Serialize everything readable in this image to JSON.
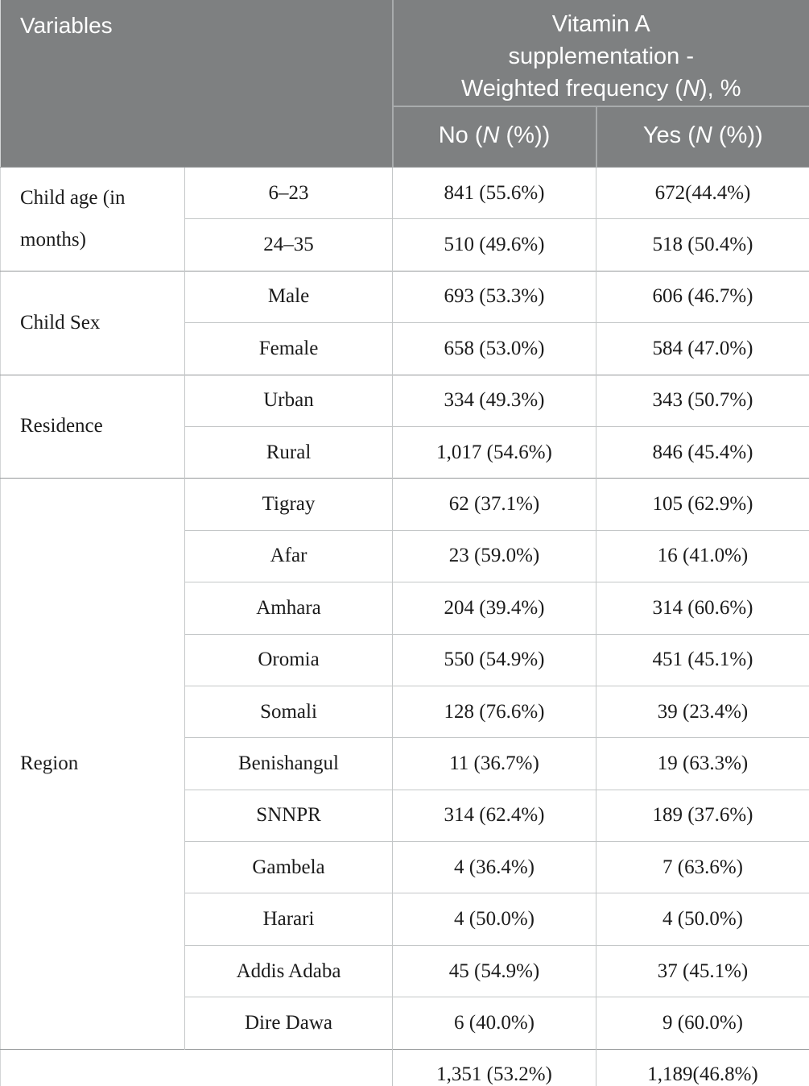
{
  "colors": {
    "header_bg": "#7e8081",
    "header_text": "#ffffff",
    "header_divider": "#a8abac",
    "border_light": "#c4c7c8",
    "border_dark": "#95989a",
    "text": "#1b1b1b"
  },
  "table": {
    "header": {
      "variables_label": "Variables",
      "group_title_html": "Vitamin A<br>supplementation -<br>Weighted frequency (<i>N</i>), %",
      "col_no_html": "No (<i>N</i> (%))",
      "col_yes_html": "Yes (<i>N</i> (%))"
    },
    "groups": [
      {
        "variable": "Child age (in months)",
        "rows": [
          {
            "category": "6–23",
            "no": "841 (55.6%)",
            "yes": "672(44.4%)"
          },
          {
            "category": "24–35",
            "no": "510 (49.6%)",
            "yes": "518 (50.4%)"
          }
        ]
      },
      {
        "variable": "Child Sex",
        "rows": [
          {
            "category": "Male",
            "no": "693 (53.3%)",
            "yes": "606 (46.7%)"
          },
          {
            "category": "Female",
            "no": "658 (53.0%)",
            "yes": "584 (47.0%)"
          }
        ]
      },
      {
        "variable": "Residence",
        "rows": [
          {
            "category": "Urban",
            "no": "334 (49.3%)",
            "yes": "343 (50.7%)"
          },
          {
            "category": "Rural",
            "no": "1,017 (54.6%)",
            "yes": "846 (45.4%)"
          }
        ]
      },
      {
        "variable": "Region",
        "rows": [
          {
            "category": "Tigray",
            "no": "62 (37.1%)",
            "yes": "105 (62.9%)"
          },
          {
            "category": "Afar",
            "no": "23 (59.0%)",
            "yes": "16 (41.0%)"
          },
          {
            "category": "Amhara",
            "no": "204 (39.4%)",
            "yes": "314 (60.6%)"
          },
          {
            "category": "Oromia",
            "no": "550 (54.9%)",
            "yes": "451 (45.1%)"
          },
          {
            "category": "Somali",
            "no": "128 (76.6%)",
            "yes": "39 (23.4%)"
          },
          {
            "category": "Benishangul",
            "no": "11 (36.7%)",
            "yes": "19 (63.3%)"
          },
          {
            "category": "SNNPR",
            "no": "314 (62.4%)",
            "yes": "189 (37.6%)"
          },
          {
            "category": "Gambela",
            "no": "4 (36.4%)",
            "yes": "7 (63.6%)"
          },
          {
            "category": "Harari",
            "no": "4 (50.0%)",
            "yes": "4 (50.0%)"
          },
          {
            "category": "Addis Adaba",
            "no": "45 (54.9%)",
            "yes": "37 (45.1%)"
          },
          {
            "category": "Dire Dawa",
            "no": "6 (40.0%)",
            "yes": "9 (60.0%)"
          }
        ]
      }
    ],
    "total_row": {
      "label": "",
      "no": "1,351 (53.2%)",
      "yes": "1,189(46.8%)"
    }
  }
}
